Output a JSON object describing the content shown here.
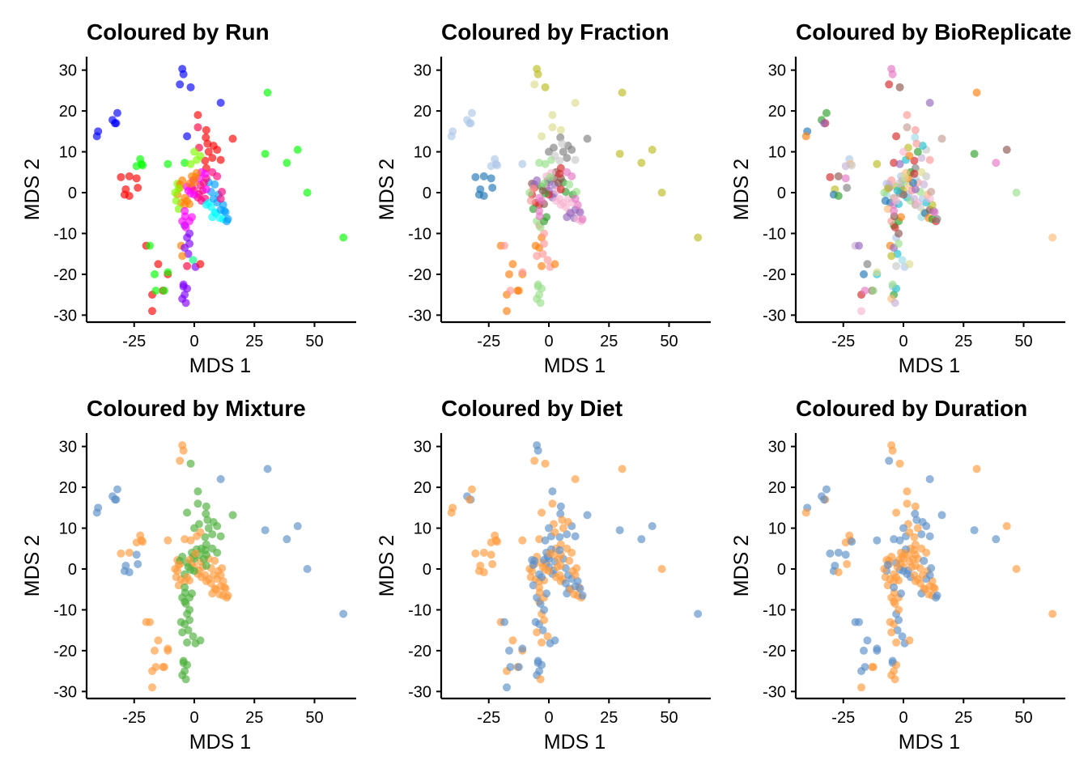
{
  "chart_data": [
    {
      "type": "scatter",
      "title": "Coloured by Run",
      "xlabel": "MDS 1",
      "ylabel": "MDS 2",
      "xlim": [
        -45,
        67
      ],
      "ylim": [
        -31.5,
        33.5
      ],
      "xticks": [
        -25,
        0,
        25,
        50
      ],
      "yticks": [
        30,
        20,
        10,
        0,
        -10,
        -20,
        -30
      ],
      "grid": false,
      "legend": "none",
      "point_opacity": 0.65,
      "palette": [
        "#0000FF",
        "#FF0000",
        "#00FF00",
        "#00FFFF",
        "#FF00FF",
        "#FF8000",
        "#8000FF",
        "#FF0040",
        "#00A0FF",
        "#80FF00",
        "#FF0080",
        "#00FF80"
      ]
    },
    {
      "type": "scatter",
      "title": "Coloured by Fraction",
      "xlabel": "MDS 1",
      "ylabel": "MDS 2",
      "xlim": [
        -45,
        67
      ],
      "ylim": [
        -31.5,
        33.5
      ],
      "xticks": [
        -25,
        0,
        25,
        50
      ],
      "yticks": [
        30,
        20,
        10,
        0,
        -10,
        -20,
        -30
      ],
      "grid": false,
      "legend": "none",
      "point_opacity": 0.65,
      "palette": [
        "#AEC7E8",
        "#1F77B4",
        "#BCBD22",
        "#DBDB8D",
        "#7F7F7F",
        "#C7C7C7",
        "#D62728",
        "#8C564B",
        "#2CA02C",
        "#98DF8A",
        "#E377C2",
        "#9467BD",
        "#F7B6D2",
        "#FF7F0E",
        "#FF9896"
      ]
    },
    {
      "type": "scatter",
      "title": "Coloured by BioReplicate",
      "xlabel": "MDS 1",
      "ylabel": "MDS 2",
      "xlim": [
        -45,
        67
      ],
      "ylim": [
        -31.5,
        33.5
      ],
      "xticks": [
        -25,
        0,
        25,
        50
      ],
      "yticks": [
        30,
        20,
        10,
        0,
        -10,
        -20,
        -30
      ],
      "grid": false,
      "legend": "none",
      "point_opacity": 0.65,
      "palette": [
        "#1F77B4",
        "#FF7F0E",
        "#2CA02C",
        "#D62728",
        "#9467BD",
        "#8C564B",
        "#E377C2",
        "#7F7F7F",
        "#BCBD22",
        "#17BECF",
        "#AEC7E8",
        "#FFBB78",
        "#98DF8A",
        "#FF9896",
        "#C5B0D5",
        "#C49C94",
        "#F7B6D2",
        "#C7C7C7",
        "#DBDB8D",
        "#9EDAE5"
      ]
    },
    {
      "type": "scatter",
      "title": "Coloured by Mixture",
      "xlabel": "MDS 1",
      "ylabel": "MDS 2",
      "xlim": [
        -45,
        67
      ],
      "ylim": [
        -31.5,
        33.5
      ],
      "xticks": [
        -25,
        0,
        25,
        50
      ],
      "yticks": [
        30,
        20,
        10,
        0,
        -10,
        -20,
        -30
      ],
      "grid": false,
      "legend": "none",
      "point_opacity": 0.65,
      "palette": [
        "#5B8FC7",
        "#FF9A3C",
        "#4CAF3A"
      ]
    },
    {
      "type": "scatter",
      "title": "Coloured by Diet",
      "xlabel": "MDS 1",
      "ylabel": "MDS 2",
      "xlim": [
        -45,
        67
      ],
      "ylim": [
        -31.5,
        33.5
      ],
      "xticks": [
        -25,
        0,
        25,
        50
      ],
      "yticks": [
        30,
        20,
        10,
        0,
        -10,
        -20,
        -30
      ],
      "grid": false,
      "legend": "none",
      "point_opacity": 0.65,
      "palette": [
        "#5B8FC7",
        "#FF9A3C"
      ]
    },
    {
      "type": "scatter",
      "title": "Coloured by Duration",
      "xlabel": "MDS 1",
      "ylabel": "MDS 2",
      "xlim": [
        -45,
        67
      ],
      "ylim": [
        -31.5,
        33.5
      ],
      "xticks": [
        -25,
        0,
        25,
        50
      ],
      "yticks": [
        30,
        20,
        10,
        0,
        -10,
        -20,
        -30
      ],
      "grid": false,
      "legend": "none",
      "point_opacity": 0.65,
      "palette": [
        "#5B8FC7",
        "#FF9A3C"
      ]
    }
  ],
  "points": [
    [
      -40,
      15,
      0,
      0,
      0,
      0,
      1,
      0
    ],
    [
      -40.5,
      13.8,
      0,
      0,
      1,
      0,
      1,
      1
    ],
    [
      -34,
      17.8,
      0,
      0,
      2,
      0,
      0,
      0
    ],
    [
      -32.5,
      17,
      0,
      0,
      3,
      0,
      0,
      1
    ],
    [
      -32,
      19.5,
      0,
      0,
      2,
      0,
      1,
      0
    ],
    [
      -33,
      17,
      0,
      0,
      4,
      0,
      1,
      0
    ],
    [
      -5,
      30.3,
      0,
      2,
      6,
      1,
      0,
      1
    ],
    [
      -4.5,
      29,
      0,
      2,
      6,
      1,
      0,
      1
    ],
    [
      -6,
      26.5,
      0,
      3,
      3,
      1,
      1,
      0
    ],
    [
      -1.5,
      25.8,
      0,
      2,
      5,
      2,
      1,
      1
    ],
    [
      -3,
      13.8,
      0,
      3,
      3,
      2,
      1,
      1
    ],
    [
      11,
      22,
      0,
      3,
      4,
      0,
      1,
      0
    ],
    [
      -27,
      4,
      1,
      1,
      5,
      1,
      1,
      0
    ],
    [
      -30.5,
      3.8,
      1,
      1,
      3,
      1,
      1,
      0
    ],
    [
      -24,
      3.5,
      1,
      1,
      6,
      0,
      1,
      0
    ],
    [
      -23.5,
      1.2,
      1,
      1,
      7,
      0,
      1,
      1
    ],
    [
      -28.5,
      0.8,
      1,
      1,
      8,
      0,
      1,
      0
    ],
    [
      -29,
      -0.5,
      1,
      1,
      0,
      0,
      1,
      0
    ],
    [
      -27,
      -0.8,
      1,
      1,
      2,
      0,
      1,
      1
    ],
    [
      1.5,
      19,
      1,
      3,
      13,
      2,
      0,
      1
    ],
    [
      5,
      15.3,
      1,
      3,
      13,
      2,
      0,
      1
    ],
    [
      4.8,
      13.5,
      1,
      4,
      19,
      2,
      0,
      0
    ],
    [
      9.5,
      10.5,
      1,
      4,
      17,
      2,
      0,
      0
    ],
    [
      7.5,
      8.5,
      1,
      4,
      14,
      2,
      0,
      0
    ],
    [
      16,
      13.2,
      1,
      4,
      15,
      2,
      0,
      0
    ],
    [
      -20,
      -13,
      1,
      13,
      14,
      1,
      1,
      0
    ],
    [
      -15,
      -17.5,
      1,
      13,
      7,
      1,
      1,
      0
    ],
    [
      -17.5,
      -25,
      1,
      13,
      3,
      1,
      1,
      0
    ],
    [
      -17.5,
      -29,
      1,
      13,
      16,
      1,
      0,
      1
    ],
    [
      -13,
      -24,
      1,
      13,
      5,
      1,
      1,
      1
    ],
    [
      -11,
      -20,
      1,
      13,
      9,
      1,
      1,
      0
    ],
    [
      30.5,
      24.5,
      2,
      2,
      1,
      0,
      1,
      1
    ],
    [
      29.5,
      9.5,
      2,
      2,
      2,
      0,
      0,
      0
    ],
    [
      38.5,
      7.3,
      2,
      2,
      6,
      0,
      0,
      0
    ],
    [
      43,
      10.5,
      2,
      2,
      5,
      0,
      0,
      1
    ],
    [
      47,
      0,
      2,
      2,
      12,
      0,
      1,
      1
    ],
    [
      62,
      -11,
      2,
      2,
      11,
      0,
      0,
      1
    ],
    [
      -22.5,
      8.2,
      2,
      0,
      10,
      1,
      1,
      1
    ],
    [
      -22,
      7,
      2,
      0,
      11,
      1,
      1,
      1
    ],
    [
      -24,
      6.5,
      2,
      0,
      14,
      1,
      1,
      1
    ],
    [
      -21.5,
      6.7,
      2,
      0,
      17,
      1,
      1,
      0
    ],
    [
      -11,
      7,
      2,
      0,
      8,
      1,
      1,
      0
    ],
    [
      -4,
      7.3,
      2,
      9,
      3,
      1,
      1,
      0
    ],
    [
      -16.5,
      -20,
      2,
      13,
      0,
      1,
      0,
      0
    ],
    [
      -12.5,
      -24,
      2,
      13,
      12,
      1,
      0,
      1
    ],
    [
      -16,
      -24,
      2,
      14,
      6,
      1,
      0,
      0
    ],
    [
      -18.5,
      -13,
      2,
      14,
      4,
      1,
      0,
      0
    ],
    [
      -11,
      -19.5,
      2,
      14,
      18,
      1,
      0,
      0
    ],
    [
      -4.5,
      -23,
      6,
      9,
      10,
      2,
      0,
      0
    ],
    [
      -4,
      -25,
      6,
      9,
      2,
      2,
      0,
      1
    ],
    [
      -3,
      -23.5,
      6,
      9,
      9,
      2,
      0,
      1
    ],
    [
      -5,
      -26,
      6,
      9,
      11,
      2,
      0,
      1
    ],
    [
      -3.5,
      -27,
      6,
      9,
      14,
      2,
      1,
      1
    ],
    [
      -4.5,
      -22.5,
      6,
      9,
      12,
      2,
      0,
      0
    ],
    [
      -5.5,
      -13,
      5,
      13,
      1,
      2,
      0,
      1
    ],
    [
      -3,
      -11,
      6,
      13,
      10,
      2,
      1,
      0
    ],
    [
      -2,
      -10,
      6,
      14,
      5,
      2,
      0,
      1
    ],
    [
      -4,
      -8,
      6,
      14,
      2,
      2,
      1,
      1
    ],
    [
      -2.5,
      -15,
      6,
      14,
      9,
      2,
      0,
      0
    ],
    [
      -5,
      -15.5,
      5,
      14,
      8,
      2,
      1,
      1
    ],
    [
      -0.5,
      -16.5,
      11,
      14,
      19,
      2,
      1,
      0
    ],
    [
      -3,
      -18,
      7,
      13,
      17,
      2,
      1,
      1
    ],
    [
      0.5,
      -18.2,
      6,
      14,
      10,
      2,
      0,
      0
    ],
    [
      2.5,
      -17.5,
      1,
      13,
      18,
      2,
      0,
      1
    ],
    [
      -4,
      -13.5,
      6,
      13,
      4,
      2,
      0,
      1
    ],
    [
      -2,
      -12.5,
      6,
      14,
      12,
      2,
      1,
      0
    ],
    [
      1.5,
      16,
      7,
      3,
      15,
      2,
      1,
      1
    ],
    [
      2,
      11,
      7,
      4,
      8,
      2,
      1,
      1
    ],
    [
      0,
      10,
      9,
      4,
      16,
      2,
      0,
      0
    ],
    [
      6,
      10,
      1,
      4,
      2,
      2,
      1,
      1
    ],
    [
      8,
      11.5,
      1,
      4,
      9,
      2,
      1,
      0
    ],
    [
      11,
      8,
      1,
      5,
      13,
      2,
      0,
      0
    ],
    [
      4.5,
      7.8,
      1,
      5,
      3,
      2,
      0,
      1
    ],
    [
      5,
      6,
      1,
      6,
      7,
      2,
      1,
      1
    ],
    [
      -6,
      1.2,
      5,
      6,
      4,
      1,
      1,
      1
    ],
    [
      -7,
      -0.5,
      5,
      6,
      19,
      1,
      1,
      0
    ],
    [
      -5.5,
      -2.5,
      5,
      6,
      0,
      1,
      1,
      1
    ],
    [
      -4,
      -3,
      5,
      6,
      6,
      1,
      1,
      1
    ],
    [
      -2,
      -2.8,
      5,
      7,
      9,
      1,
      1,
      1
    ],
    [
      -7,
      2.2,
      9,
      7,
      10,
      1,
      0,
      1
    ],
    [
      -6.5,
      -4,
      9,
      8,
      11,
      1,
      0,
      1
    ],
    [
      -8,
      0,
      9,
      9,
      12,
      1,
      1,
      1
    ],
    [
      -5,
      -7,
      4,
      9,
      13,
      2,
      0,
      1
    ],
    [
      -3.5,
      -8.5,
      4,
      9,
      3,
      2,
      0,
      1
    ],
    [
      -2,
      -7,
      4,
      8,
      2,
      2,
      1,
      1
    ],
    [
      -1,
      -6,
      4,
      8,
      1,
      2,
      0,
      0
    ],
    [
      -3.8,
      -5.8,
      4,
      10,
      5,
      2,
      1,
      1
    ],
    [
      -4,
      -4.5,
      4,
      10,
      6,
      2,
      1,
      0
    ],
    [
      -1,
      1.3,
      10,
      10,
      7,
      1,
      1,
      1
    ],
    [
      0,
      0.5,
      10,
      11,
      8,
      1,
      0,
      1
    ],
    [
      1.5,
      -1.2,
      10,
      11,
      9,
      1,
      0,
      0
    ],
    [
      2,
      -0.4,
      10,
      11,
      10,
      1,
      0,
      0
    ],
    [
      2.5,
      1.8,
      10,
      11,
      11,
      1,
      0,
      1
    ],
    [
      3,
      -2,
      10,
      12,
      12,
      1,
      1,
      0
    ],
    [
      3.5,
      0.5,
      10,
      12,
      13,
      1,
      1,
      1
    ],
    [
      4.5,
      -1.5,
      10,
      12,
      14,
      1,
      1,
      1
    ],
    [
      5,
      -3,
      3,
      12,
      15,
      1,
      1,
      1
    ],
    [
      6,
      -2.5,
      3,
      12,
      16,
      1,
      1,
      1
    ],
    [
      7,
      -3.5,
      3,
      12,
      17,
      1,
      0,
      1
    ],
    [
      8.5,
      -4.8,
      3,
      12,
      18,
      1,
      0,
      1
    ],
    [
      7.5,
      -6,
      3,
      11,
      19,
      1,
      0,
      0
    ],
    [
      9,
      -5,
      3,
      11,
      0,
      1,
      1,
      1
    ],
    [
      10.5,
      -6.2,
      3,
      11,
      1,
      1,
      1,
      1
    ],
    [
      12,
      -6.5,
      3,
      12,
      2,
      1,
      1,
      1
    ],
    [
      13.5,
      -7,
      8,
      12,
      3,
      1,
      1,
      0
    ],
    [
      12.5,
      -4.5,
      8,
      12,
      4,
      1,
      1,
      1
    ],
    [
      11,
      -4.2,
      8,
      11,
      5,
      1,
      0,
      1
    ],
    [
      13,
      -4.8,
      8,
      11,
      6,
      1,
      0,
      1
    ],
    [
      14,
      -6.5,
      8,
      10,
      7,
      1,
      0,
      0
    ],
    [
      12,
      -3,
      8,
      10,
      8,
      1,
      0,
      1
    ],
    [
      9.5,
      -2.4,
      8,
      12,
      9,
      1,
      0,
      0
    ],
    [
      8,
      -1.5,
      8,
      12,
      10,
      1,
      0,
      1
    ],
    [
      10,
      -0.5,
      8,
      8,
      11,
      1,
      1,
      1
    ],
    [
      7,
      0.2,
      8,
      8,
      12,
      1,
      0,
      1
    ],
    [
      6,
      2.5,
      8,
      8,
      13,
      1,
      0,
      1
    ],
    [
      8.5,
      2,
      8,
      9,
      14,
      1,
      1,
      0
    ],
    [
      11.5,
      0.2,
      10,
      9,
      15,
      1,
      1,
      0
    ],
    [
      11,
      -1.5,
      10,
      10,
      16,
      1,
      1,
      0
    ],
    [
      9.5,
      4,
      10,
      10,
      17,
      2,
      1,
      1
    ],
    [
      7.5,
      5,
      10,
      10,
      18,
      2,
      1,
      1
    ],
    [
      5,
      3.5,
      10,
      7,
      19,
      2,
      1,
      1
    ],
    [
      4,
      2.4,
      10,
      7,
      0,
      2,
      1,
      1
    ],
    [
      2,
      3.5,
      4,
      7,
      1,
      2,
      1,
      1
    ],
    [
      3,
      5,
      4,
      7,
      2,
      2,
      1,
      1
    ],
    [
      4.5,
      4.6,
      4,
      6,
      3,
      2,
      0,
      1
    ],
    [
      5,
      0.8,
      4,
      6,
      4,
      2,
      1,
      1
    ],
    [
      0,
      -0.5,
      4,
      6,
      5,
      2,
      1,
      0
    ],
    [
      -0.5,
      3,
      4,
      8,
      6,
      2,
      0,
      1
    ],
    [
      -1.5,
      -0.2,
      4,
      8,
      7,
      2,
      1,
      0
    ],
    [
      -3,
      1.5,
      4,
      8,
      8,
      2,
      1,
      0
    ],
    [
      -2.5,
      0.5,
      4,
      7,
      9,
      2,
      1,
      1
    ],
    [
      -1,
      4,
      5,
      12,
      10,
      2,
      0,
      1
    ],
    [
      1,
      4.8,
      5,
      12,
      11,
      2,
      0,
      0
    ],
    [
      0,
      2.5,
      5,
      11,
      12,
      2,
      0,
      1
    ],
    [
      -5,
      3,
      5,
      11,
      13,
      2,
      1,
      1
    ],
    [
      -6,
      2,
      5,
      11,
      14,
      2,
      0,
      1
    ],
    [
      -4,
      -1.3,
      5,
      10,
      15,
      2,
      0,
      1
    ],
    [
      -3,
      -2,
      5,
      10,
      16,
      1,
      0,
      1
    ],
    [
      -2,
      2.2,
      5,
      9,
      17,
      1,
      0,
      1
    ],
    [
      0.5,
      3.8,
      5,
      9,
      18,
      1,
      1,
      1
    ],
    [
      -7.5,
      -2,
      9,
      14,
      0,
      1,
      1,
      1
    ],
    [
      -6.5,
      1,
      9,
      14,
      8,
      1,
      0,
      0
    ],
    [
      -1.5,
      7,
      9,
      9,
      4,
      1,
      0,
      0
    ],
    [
      1,
      8,
      9,
      9,
      9,
      1,
      0,
      0
    ],
    [
      2.5,
      9,
      9,
      5,
      1,
      1,
      1,
      1
    ],
    [
      5.5,
      12,
      1,
      5,
      13,
      2,
      1,
      0
    ]
  ]
}
